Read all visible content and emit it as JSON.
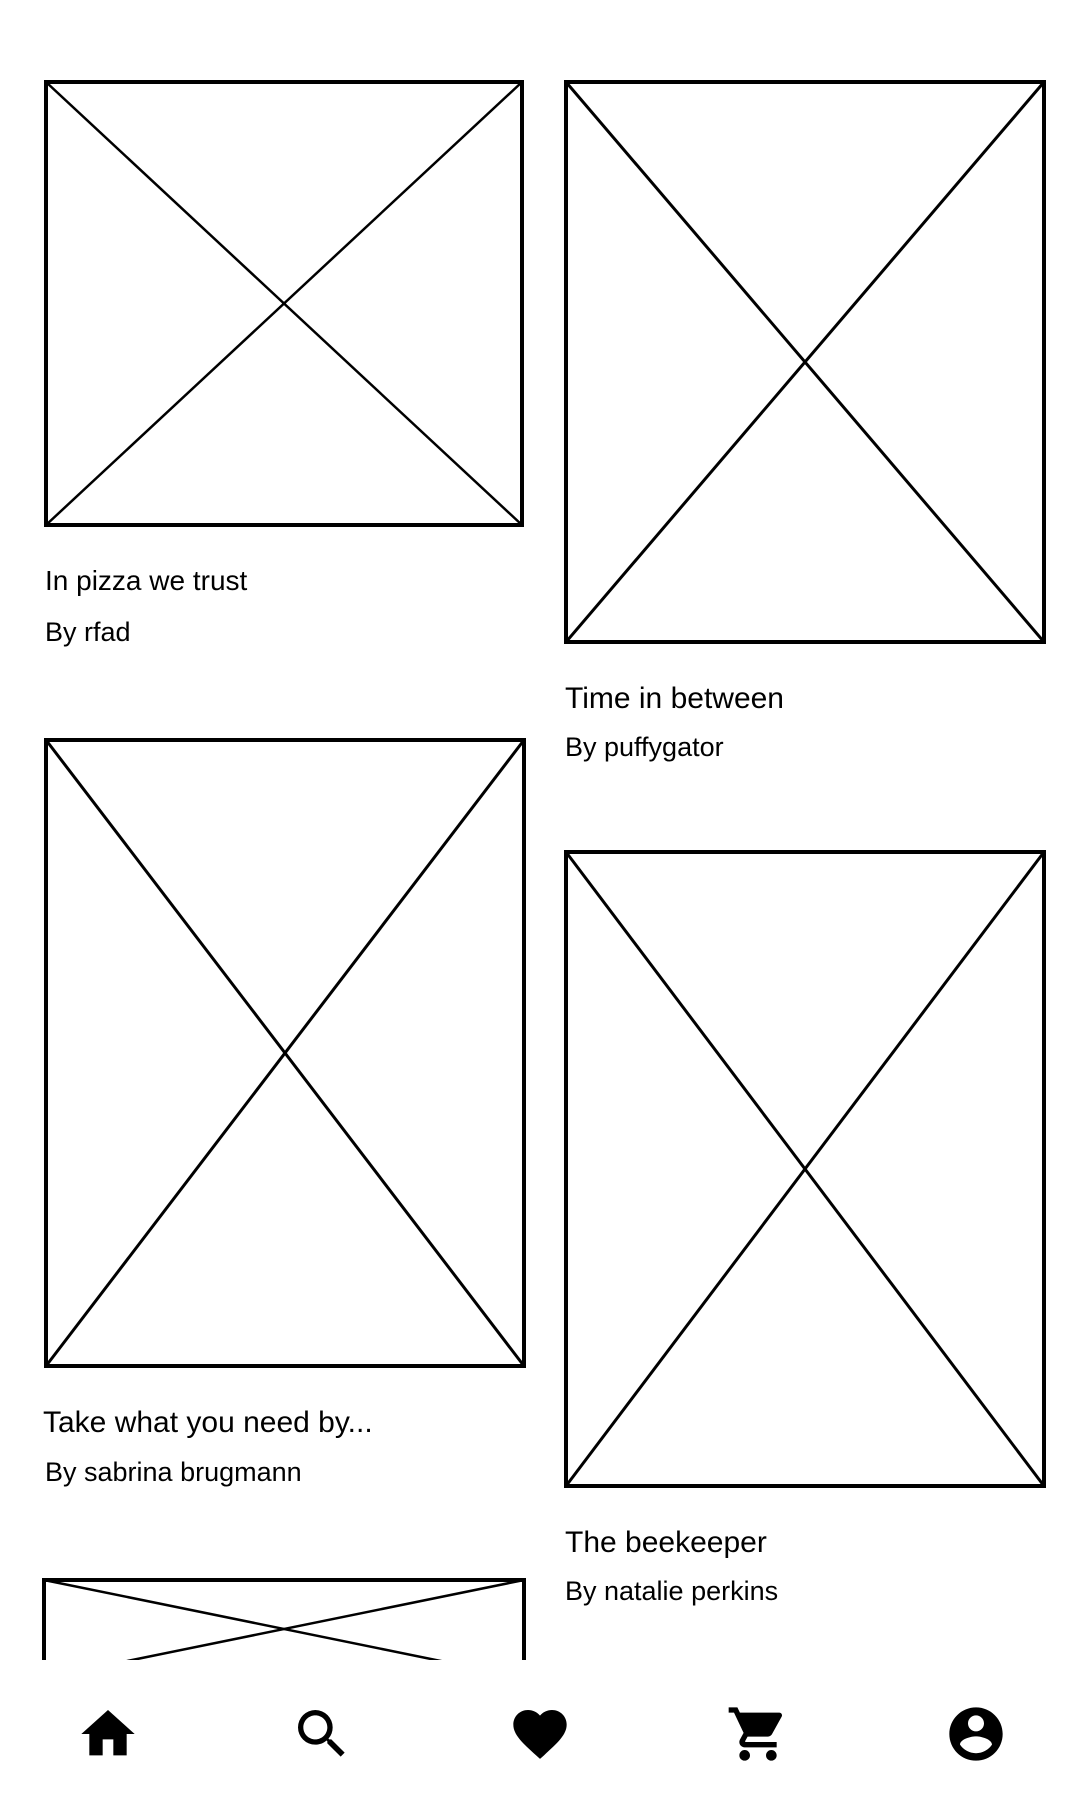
{
  "feed": {
    "items": [
      {
        "title": "In pizza we trust",
        "author": "By rfad"
      },
      {
        "title": "Time in between",
        "author": "By puffygator"
      },
      {
        "title": "Take what you need by...",
        "author": "By sabrina brugmann"
      },
      {
        "title": "The beekeeper",
        "author": "By natalie perkins"
      }
    ]
  },
  "bottom_nav": {
    "items": [
      {
        "icon": "home-icon"
      },
      {
        "icon": "search-icon"
      },
      {
        "icon": "heart-icon"
      },
      {
        "icon": "cart-icon"
      },
      {
        "icon": "account-icon"
      }
    ]
  }
}
